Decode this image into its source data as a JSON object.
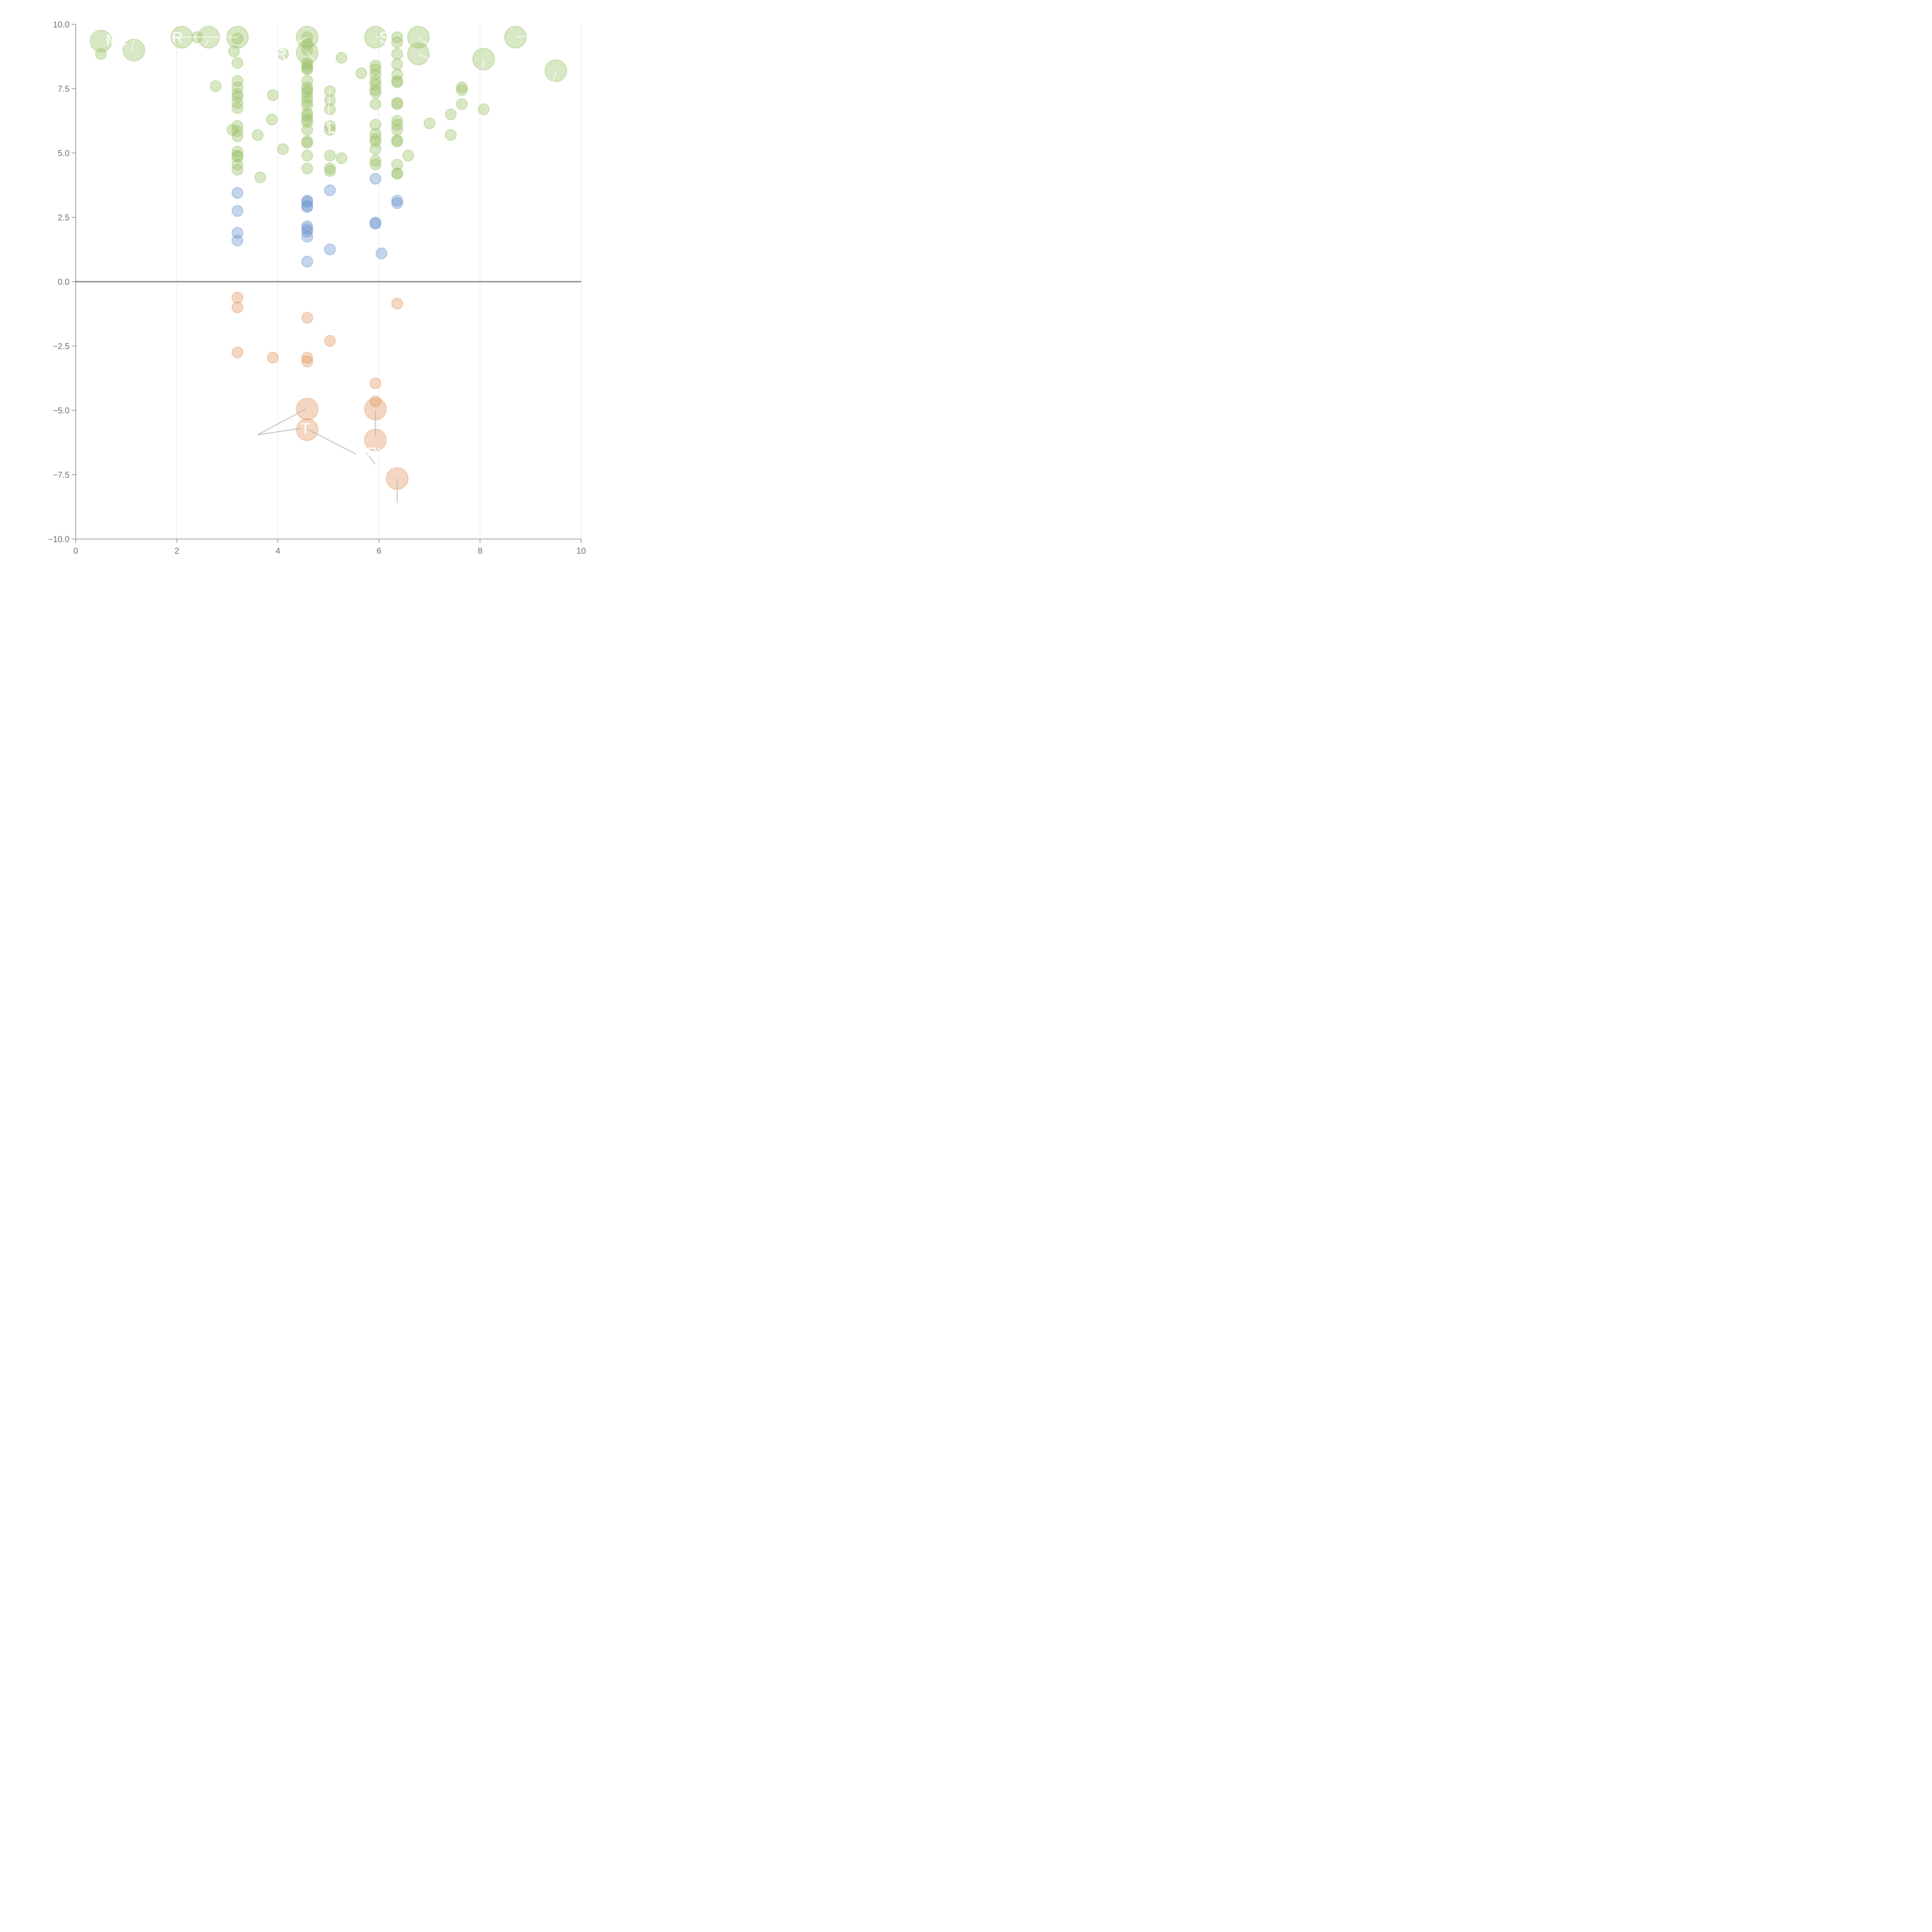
{
  "chart_data": {
    "type": "scatter",
    "title": "",
    "xlabel": "",
    "ylabel": "",
    "xlim": [
      0,
      10
    ],
    "ylim": [
      -10,
      10
    ],
    "x_ticks": [
      "0",
      "2",
      "4",
      "6",
      "8",
      "10"
    ],
    "y_ticks": [
      "10.0",
      "7.5",
      "5.0",
      "2.5",
      "0.0",
      "−2.5",
      "−5.0",
      "−7.5",
      "−10.0"
    ],
    "x_tick_values": [
      0,
      2,
      4,
      6,
      8,
      10
    ],
    "y_tick_values": [
      10,
      7.5,
      5,
      2.5,
      0,
      -2.5,
      -5,
      -7.5,
      -10
    ],
    "grid": "vertical",
    "zero_line": true,
    "colors": {
      "green": "#9dc36c",
      "blue": "#6f95cc",
      "orange": "#e39a66",
      "axis": "#777777",
      "grid": "#dddddd"
    },
    "series": [
      {
        "color": "green",
        "points": [
          {
            "x": 0.5,
            "y": 9.35,
            "size": "large"
          },
          {
            "x": 0.5,
            "y": 8.85,
            "size": "small"
          },
          {
            "x": 1.15,
            "y": 9.0,
            "size": "large"
          },
          {
            "x": 2.1,
            "y": 9.5,
            "size": "large"
          },
          {
            "x": 2.4,
            "y": 9.5,
            "size": "small"
          },
          {
            "x": 2.63,
            "y": 9.5,
            "size": "large"
          },
          {
            "x": 2.77,
            "y": 7.6,
            "size": "small"
          },
          {
            "x": 3.2,
            "y": 9.5,
            "size": "large"
          },
          {
            "x": 3.2,
            "y": 9.45,
            "size": "small"
          },
          {
            "x": 3.13,
            "y": 8.95,
            "size": "small"
          },
          {
            "x": 3.2,
            "y": 8.5,
            "size": "small"
          },
          {
            "x": 3.2,
            "y": 7.8,
            "size": "small"
          },
          {
            "x": 3.2,
            "y": 7.55,
            "size": "small"
          },
          {
            "x": 3.2,
            "y": 7.3,
            "size": "small"
          },
          {
            "x": 3.2,
            "y": 7.2,
            "size": "small"
          },
          {
            "x": 3.2,
            "y": 6.95,
            "size": "small"
          },
          {
            "x": 3.2,
            "y": 6.75,
            "size": "small"
          },
          {
            "x": 3.2,
            "y": 6.05,
            "size": "small"
          },
          {
            "x": 3.1,
            "y": 5.9,
            "size": "small"
          },
          {
            "x": 3.2,
            "y": 5.85,
            "size": "small"
          },
          {
            "x": 3.2,
            "y": 5.65,
            "size": "small"
          },
          {
            "x": 3.2,
            "y": 5.05,
            "size": "small"
          },
          {
            "x": 3.2,
            "y": 4.9,
            "size": "small"
          },
          {
            "x": 3.2,
            "y": 4.85,
            "size": "small"
          },
          {
            "x": 3.2,
            "y": 4.55,
            "size": "small"
          },
          {
            "x": 3.2,
            "y": 4.35,
            "size": "small"
          },
          {
            "x": 3.6,
            "y": 5.7,
            "size": "small"
          },
          {
            "x": 3.65,
            "y": 4.05,
            "size": "small"
          },
          {
            "x": 3.88,
            "y": 6.3,
            "size": "small"
          },
          {
            "x": 3.9,
            "y": 7.25,
            "size": "small"
          },
          {
            "x": 4.1,
            "y": 8.85,
            "size": "small"
          },
          {
            "x": 4.1,
            "y": 5.15,
            "size": "small"
          },
          {
            "x": 4.58,
            "y": 9.5,
            "size": "large"
          },
          {
            "x": 4.58,
            "y": 9.5,
            "size": "small"
          },
          {
            "x": 4.58,
            "y": 9.25,
            "size": "small"
          },
          {
            "x": 4.58,
            "y": 9.0,
            "size": "small"
          },
          {
            "x": 4.58,
            "y": 8.9,
            "size": "large"
          },
          {
            "x": 4.58,
            "y": 8.5,
            "size": "small"
          },
          {
            "x": 4.58,
            "y": 8.4,
            "size": "small"
          },
          {
            "x": 4.58,
            "y": 8.3,
            "size": "small"
          },
          {
            "x": 4.58,
            "y": 8.25,
            "size": "small"
          },
          {
            "x": 4.58,
            "y": 7.8,
            "size": "small"
          },
          {
            "x": 4.58,
            "y": 7.55,
            "size": "small"
          },
          {
            "x": 4.58,
            "y": 7.45,
            "size": "small"
          },
          {
            "x": 4.58,
            "y": 7.35,
            "size": "small"
          },
          {
            "x": 4.58,
            "y": 7.15,
            "size": "small"
          },
          {
            "x": 4.58,
            "y": 7.0,
            "size": "small"
          },
          {
            "x": 4.58,
            "y": 6.85,
            "size": "small"
          },
          {
            "x": 4.58,
            "y": 6.55,
            "size": "small"
          },
          {
            "x": 4.58,
            "y": 6.45,
            "size": "small"
          },
          {
            "x": 4.58,
            "y": 6.3,
            "size": "small"
          },
          {
            "x": 4.58,
            "y": 6.2,
            "size": "small"
          },
          {
            "x": 4.58,
            "y": 5.9,
            "size": "small"
          },
          {
            "x": 4.58,
            "y": 5.45,
            "size": "small"
          },
          {
            "x": 4.58,
            "y": 5.4,
            "size": "small"
          },
          {
            "x": 4.58,
            "y": 4.9,
            "size": "small"
          },
          {
            "x": 4.58,
            "y": 4.4,
            "size": "small"
          },
          {
            "x": 5.03,
            "y": 7.4,
            "size": "small"
          },
          {
            "x": 5.03,
            "y": 7.05,
            "size": "small"
          },
          {
            "x": 5.03,
            "y": 6.7,
            "size": "small"
          },
          {
            "x": 5.03,
            "y": 6.05,
            "size": "small"
          },
          {
            "x": 5.03,
            "y": 5.9,
            "size": "small"
          },
          {
            "x": 5.03,
            "y": 4.9,
            "size": "small"
          },
          {
            "x": 5.03,
            "y": 4.4,
            "size": "small"
          },
          {
            "x": 5.03,
            "y": 4.3,
            "size": "small"
          },
          {
            "x": 5.26,
            "y": 8.7,
            "size": "small"
          },
          {
            "x": 5.26,
            "y": 4.8,
            "size": "small"
          },
          {
            "x": 5.65,
            "y": 8.1,
            "size": "small"
          },
          {
            "x": 5.93,
            "y": 9.5,
            "size": "large"
          },
          {
            "x": 5.93,
            "y": 8.4,
            "size": "small"
          },
          {
            "x": 5.93,
            "y": 8.25,
            "size": "small"
          },
          {
            "x": 5.93,
            "y": 8.05,
            "size": "small"
          },
          {
            "x": 5.93,
            "y": 7.8,
            "size": "small"
          },
          {
            "x": 5.93,
            "y": 7.65,
            "size": "small"
          },
          {
            "x": 5.93,
            "y": 7.45,
            "size": "small"
          },
          {
            "x": 5.93,
            "y": 7.35,
            "size": "small"
          },
          {
            "x": 5.93,
            "y": 6.9,
            "size": "small"
          },
          {
            "x": 5.93,
            "y": 6.1,
            "size": "small"
          },
          {
            "x": 5.93,
            "y": 5.75,
            "size": "small"
          },
          {
            "x": 5.93,
            "y": 5.55,
            "size": "small"
          },
          {
            "x": 5.93,
            "y": 5.45,
            "size": "small"
          },
          {
            "x": 5.93,
            "y": 5.15,
            "size": "small"
          },
          {
            "x": 5.93,
            "y": 4.7,
            "size": "small"
          },
          {
            "x": 5.93,
            "y": 4.55,
            "size": "small"
          },
          {
            "x": 6.36,
            "y": 9.5,
            "size": "small"
          },
          {
            "x": 6.36,
            "y": 9.3,
            "size": "small"
          },
          {
            "x": 6.36,
            "y": 8.85,
            "size": "small"
          },
          {
            "x": 6.36,
            "y": 8.45,
            "size": "small"
          },
          {
            "x": 6.36,
            "y": 8.05,
            "size": "small"
          },
          {
            "x": 6.36,
            "y": 7.8,
            "size": "small"
          },
          {
            "x": 6.36,
            "y": 7.75,
            "size": "small"
          },
          {
            "x": 6.36,
            "y": 6.95,
            "size": "small"
          },
          {
            "x": 6.36,
            "y": 6.9,
            "size": "small"
          },
          {
            "x": 6.36,
            "y": 6.25,
            "size": "small"
          },
          {
            "x": 6.36,
            "y": 6.1,
            "size": "small"
          },
          {
            "x": 6.36,
            "y": 5.9,
            "size": "small"
          },
          {
            "x": 6.36,
            "y": 5.5,
            "size": "small"
          },
          {
            "x": 6.36,
            "y": 5.45,
            "size": "small"
          },
          {
            "x": 6.36,
            "y": 4.55,
            "size": "small"
          },
          {
            "x": 6.36,
            "y": 4.2,
            "size": "small"
          },
          {
            "x": 6.36,
            "y": 4.2,
            "size": "small"
          },
          {
            "x": 6.58,
            "y": 4.9,
            "size": "small"
          },
          {
            "x": 6.78,
            "y": 9.5,
            "size": "large"
          },
          {
            "x": 6.78,
            "y": 8.85,
            "size": "large"
          },
          {
            "x": 7.0,
            "y": 6.15,
            "size": "small"
          },
          {
            "x": 7.42,
            "y": 6.5,
            "size": "small"
          },
          {
            "x": 7.42,
            "y": 5.7,
            "size": "small"
          },
          {
            "x": 7.64,
            "y": 7.55,
            "size": "small"
          },
          {
            "x": 7.64,
            "y": 7.45,
            "size": "small"
          },
          {
            "x": 7.64,
            "y": 6.9,
            "size": "small"
          },
          {
            "x": 8.07,
            "y": 8.65,
            "size": "large"
          },
          {
            "x": 8.07,
            "y": 6.7,
            "size": "small"
          },
          {
            "x": 8.7,
            "y": 9.5,
            "size": "large"
          },
          {
            "x": 9.5,
            "y": 8.2,
            "size": "large"
          }
        ]
      },
      {
        "color": "blue",
        "points": [
          {
            "x": 3.2,
            "y": 3.45,
            "size": "small"
          },
          {
            "x": 3.2,
            "y": 2.75,
            "size": "small"
          },
          {
            "x": 3.2,
            "y": 1.9,
            "size": "small"
          },
          {
            "x": 3.2,
            "y": 1.6,
            "size": "small"
          },
          {
            "x": 4.58,
            "y": 3.15,
            "size": "small"
          },
          {
            "x": 4.58,
            "y": 3.1,
            "size": "small"
          },
          {
            "x": 4.58,
            "y": 2.95,
            "size": "small"
          },
          {
            "x": 4.58,
            "y": 2.9,
            "size": "small"
          },
          {
            "x": 4.58,
            "y": 2.15,
            "size": "small"
          },
          {
            "x": 4.58,
            "y": 2.05,
            "size": "small"
          },
          {
            "x": 4.58,
            "y": 1.95,
            "size": "small"
          },
          {
            "x": 4.58,
            "y": 1.75,
            "size": "small"
          },
          {
            "x": 4.58,
            "y": 0.78,
            "size": "small"
          },
          {
            "x": 5.03,
            "y": 3.55,
            "size": "small"
          },
          {
            "x": 5.03,
            "y": 1.25,
            "size": "small"
          },
          {
            "x": 5.93,
            "y": 4.0,
            "size": "small"
          },
          {
            "x": 5.93,
            "y": 2.3,
            "size": "small"
          },
          {
            "x": 5.93,
            "y": 2.25,
            "size": "small"
          },
          {
            "x": 6.05,
            "y": 1.1,
            "size": "small"
          },
          {
            "x": 6.36,
            "y": 3.15,
            "size": "small"
          },
          {
            "x": 6.36,
            "y": 3.05,
            "size": "small"
          }
        ]
      },
      {
        "color": "orange",
        "points": [
          {
            "x": 3.2,
            "y": -0.62,
            "size": "small"
          },
          {
            "x": 3.2,
            "y": -1.0,
            "size": "small"
          },
          {
            "x": 3.2,
            "y": -2.75,
            "size": "small"
          },
          {
            "x": 3.9,
            "y": -2.95,
            "size": "small"
          },
          {
            "x": 4.58,
            "y": -1.4,
            "size": "small"
          },
          {
            "x": 4.58,
            "y": -2.95,
            "size": "small"
          },
          {
            "x": 4.58,
            "y": -3.1,
            "size": "small"
          },
          {
            "x": 4.58,
            "y": -4.95,
            "size": "large"
          },
          {
            "x": 4.58,
            "y": -5.75,
            "size": "large"
          },
          {
            "x": 5.03,
            "y": -2.3,
            "size": "small"
          },
          {
            "x": 5.93,
            "y": -3.95,
            "size": "small"
          },
          {
            "x": 5.93,
            "y": -4.65,
            "size": "small"
          },
          {
            "x": 5.93,
            "y": -4.95,
            "size": "large"
          },
          {
            "x": 5.93,
            "y": -6.15,
            "size": "large"
          },
          {
            "x": 6.36,
            "y": -0.85,
            "size": "small"
          },
          {
            "x": 6.36,
            "y": -7.65,
            "size": "large"
          }
        ]
      }
    ],
    "labels": [
      {
        "text": "ML",
        "x": 0.6,
        "y": 9.4,
        "lx": 0.65,
        "ly": 9.4
      },
      {
        "text": "",
        "x": 1.1,
        "y": 8.95,
        "lx": 1.15,
        "ly": 9.4
      },
      {
        "text": "R",
        "x": 1.9,
        "y": 9.5,
        "lx": 3.2,
        "ly": 9.5
      },
      {
        "text": "",
        "x": 2.55,
        "y": 9.15,
        "lx": 2.63,
        "ly": 9.4
      },
      {
        "text": "R",
        "x": 3.95,
        "y": 8.85,
        "lx": 4.58,
        "ly": 9.5
      },
      {
        "text": "",
        "x": 4.58,
        "y": 8.9,
        "lx": 4.7,
        "ly": 8.6
      },
      {
        "text": "L",
        "x": 4.98,
        "y": 6.0,
        "lx": 5.03,
        "ly": 7.45
      },
      {
        "text": "S",
        "x": 6.0,
        "y": 9.5,
        "lx": 5.93,
        "ly": 9.5
      },
      {
        "text": "",
        "x": 7.0,
        "y": 9.2,
        "lx": 6.78,
        "ly": 9.5
      },
      {
        "text": "",
        "x": 7.0,
        "y": 8.65,
        "lx": 6.78,
        "ly": 8.85
      },
      {
        "text": "C",
        "x": 8.9,
        "y": 9.55,
        "lx": 8.7,
        "ly": 9.5
      },
      {
        "text": "",
        "x": 8.05,
        "y": 8.25,
        "lx": 8.07,
        "ly": 8.65
      },
      {
        "text": "",
        "x": 9.45,
        "y": 7.75,
        "lx": 9.5,
        "ly": 8.2
      },
      {
        "text": "T",
        "x": 4.45,
        "y": -5.7,
        "lx": 3.6,
        "ly": -5.95
      },
      {
        "text": "",
        "x": 4.55,
        "y": -4.95,
        "lx": 3.6,
        "ly": -5.95
      },
      {
        "text": "",
        "x": 4.6,
        "y": -5.75,
        "lx": 5.55,
        "ly": -6.7
      },
      {
        "text": "RY",
        "x": 5.75,
        "y": -6.65,
        "lx": 5.93,
        "ly": -7.1
      },
      {
        "text": "",
        "x": 5.93,
        "y": -5.0,
        "lx": 5.93,
        "ly": -6.0
      },
      {
        "text": "",
        "x": 6.36,
        "y": -7.65,
        "lx": 6.36,
        "ly": -8.6
      }
    ]
  }
}
